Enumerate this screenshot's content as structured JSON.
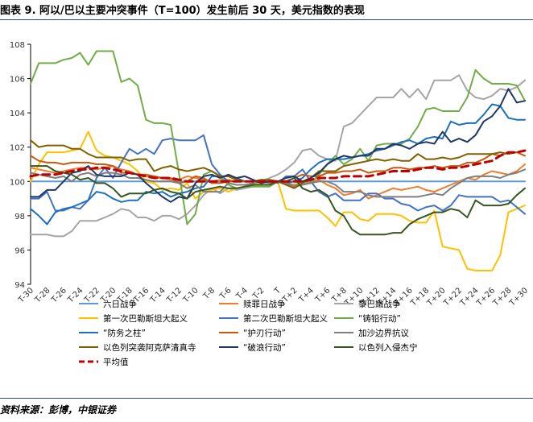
{
  "title": "图表 9. 阿以/巴以主要冲突事件（T=100）发生前后 30 天，美元指数的表现",
  "source": "资料来源：彭博，中银证券",
  "chart_data": {
    "type": "line",
    "x": [
      "T-30",
      "T-29",
      "T-28",
      "T-27",
      "T-26",
      "T-25",
      "T-24",
      "T-23",
      "T-22",
      "T-21",
      "T-20",
      "T-19",
      "T-18",
      "T-17",
      "T-16",
      "T-15",
      "T-14",
      "T-13",
      "T-12",
      "T-11",
      "T-10",
      "T-9",
      "T-8",
      "T-7",
      "T-6",
      "T-5",
      "T-4",
      "T-3",
      "T-2",
      "T-1",
      "T",
      "T+1",
      "T+2",
      "T+3",
      "T+4",
      "T+5",
      "T+6",
      "T+7",
      "T+8",
      "T+9",
      "T+10",
      "T+11",
      "T+12",
      "T+13",
      "T+14",
      "T+15",
      "T+16",
      "T+17",
      "T+18",
      "T+19",
      "T+20",
      "T+21",
      "T+22",
      "T+23",
      "T+24",
      "T+25",
      "T+26",
      "T+27",
      "T+28",
      "T+29",
      "T+30"
    ],
    "xticks": [
      "T-30",
      "T-28",
      "T-26",
      "T-24",
      "T-22",
      "T-20",
      "T-18",
      "T-16",
      "T-14",
      "T-12",
      "T-10",
      "T-8",
      "T-6",
      "T-4",
      "T-2",
      "T",
      "T+2",
      "T+4",
      "T+6",
      "T+8",
      "T+10",
      "T+12",
      "T+14",
      "T+16",
      "T+18",
      "T+20",
      "T+22",
      "T+24",
      "T+26",
      "T+28",
      "T+30"
    ],
    "ylim": [
      94,
      108
    ],
    "yticks": [
      94,
      96,
      98,
      100,
      102,
      104,
      106,
      108
    ],
    "grid": false,
    "legend_position": "bottom",
    "series": [
      {
        "name": "六日战争",
        "color": "#5b9bd5",
        "width": 2,
        "dashed": false,
        "values": [
          100,
          100,
          100,
          100,
          100,
          100,
          100,
          100,
          100,
          100,
          100,
          100,
          100,
          100,
          100,
          100,
          100,
          100,
          100,
          100,
          100,
          100,
          100,
          100,
          100,
          100,
          100,
          100,
          100,
          100,
          100,
          100,
          100,
          100,
          100,
          100,
          100,
          100,
          100,
          100,
          100,
          100,
          100,
          100,
          100,
          100,
          100,
          100,
          100,
          100,
          100,
          100,
          100,
          100,
          100,
          100,
          100,
          100,
          100,
          100,
          100
        ]
      },
      {
        "name": "赎罪日战争",
        "color": "#ed7d31",
        "width": 2,
        "dashed": false,
        "values": [
          100.8,
          100.7,
          100.6,
          100.5,
          100.6,
          100.7,
          100.8,
          100.8,
          100.7,
          100.8,
          100.9,
          100.7,
          100.6,
          100.4,
          100.3,
          100.2,
          100.2,
          100.1,
          100.1,
          100.3,
          100.2,
          100.1,
          100.0,
          100.1,
          100.1,
          100.0,
          100.0,
          100.0,
          100.1,
          100.0,
          100.0,
          99.9,
          99.8,
          99.9,
          100.0,
          100.1,
          99.8,
          99.6,
          99.2,
          99.3,
          99.5,
          99.0,
          99.2,
          99.4,
          99.6,
          99.5,
          99.6,
          99.7,
          99.5,
          99.4,
          99.6,
          99.8,
          100.0,
          100.2,
          100.1,
          100.4,
          100.6,
          100.5,
          100.4,
          100.6,
          101.0
        ]
      },
      {
        "name": "黎巴嫩战争",
        "color": "#a5a5a5",
        "width": 2,
        "dashed": false,
        "values": [
          96.9,
          96.9,
          96.9,
          96.8,
          96.8,
          97.1,
          97.7,
          97.7,
          97.7,
          97.9,
          98.1,
          98.4,
          98.3,
          97.9,
          97.9,
          97.7,
          98.0,
          98.0,
          97.8,
          98.1,
          98.6,
          99.2,
          99.6,
          99.3,
          99.6,
          99.5,
          99.6,
          99.7,
          100.0,
          100.2,
          100.4,
          100.7,
          101.1,
          101.8,
          101.9,
          101.5,
          101.3,
          101.2,
          103.2,
          103.4,
          103.9,
          104.4,
          104.9,
          104.9,
          104.9,
          105.4,
          104.9,
          105.4,
          104.8,
          105.9,
          105.9,
          105.9,
          106.2,
          105.3,
          104.9,
          104.8,
          105.0,
          105.4,
          105.3,
          105.5,
          105.9
        ]
      },
      {
        "name": "第一次巴勒斯坦大起义",
        "color": "#ffc000",
        "width": 2,
        "dashed": false,
        "values": [
          100.0,
          101.0,
          101.7,
          101.7,
          101.7,
          101.8,
          101.9,
          102.9,
          101.8,
          101.5,
          101.4,
          101.2,
          101.0,
          100.6,
          100.0,
          99.9,
          99.5,
          99.6,
          99.5,
          99.9,
          99.0,
          99.4,
          99.5,
          99.6,
          99.4,
          99.6,
          99.7,
          99.9,
          99.9,
          100.0,
          100.0,
          98.4,
          98.3,
          98.3,
          98.3,
          98.3,
          97.9,
          97.4,
          98.2,
          98.2,
          97.8,
          97.7,
          98.1,
          98.1,
          98.1,
          98.0,
          97.7,
          97.6,
          97.6,
          98.3,
          96.2,
          96.1,
          96.0,
          94.9,
          94.8,
          94.8,
          94.8,
          95.7,
          98.2,
          98.4,
          98.6
        ]
      },
      {
        "name": "第二次巴勒斯坦大起义",
        "color": "#4472c4",
        "width": 2,
        "dashed": false,
        "values": [
          99.0,
          99.0,
          99.4,
          98.3,
          98.3,
          98.5,
          98.4,
          98.9,
          100.2,
          100.8,
          100.2,
          101.1,
          101.9,
          101.6,
          101.9,
          101.6,
          102.4,
          102.5,
          102.4,
          102.4,
          102.4,
          102.7,
          101.0,
          100.4,
          100.0,
          100.0,
          100.0,
          100.0,
          100.0,
          100.0,
          99.9,
          100.3,
          100.3,
          100.7,
          100.0,
          99.4,
          99.1,
          99.3,
          98.9,
          98.9,
          98.9,
          99.3,
          99.3,
          99.0,
          99.0,
          98.7,
          98.6,
          98.3,
          98.5,
          98.6,
          98.3,
          98.6,
          99.2,
          99.1,
          99.1,
          99.1,
          99.1,
          98.8,
          98.9,
          98.5,
          98.1
        ]
      },
      {
        "name": "“铸铅行动”",
        "color": "#70ad47",
        "width": 2,
        "dashed": false,
        "values": [
          105.7,
          106.9,
          106.9,
          106.9,
          107.1,
          107.2,
          107.5,
          106.8,
          107.6,
          107.6,
          107.6,
          105.8,
          106.0,
          105.6,
          103.6,
          103.4,
          103.4,
          103.3,
          100.5,
          97.5,
          98.1,
          100.4,
          100.6,
          100.3,
          99.8,
          99.6,
          99.7,
          99.7,
          99.7,
          99.7,
          100.0,
          99.9,
          99.7,
          100.0,
          99.9,
          100.4,
          101.0,
          101.5,
          101.0,
          101.3,
          101.9,
          101.2,
          102.1,
          102.2,
          102.2,
          102.2,
          102.5,
          103.2,
          104.2,
          104.3,
          104.1,
          104.1,
          104.1,
          104.9,
          106.5,
          106.0,
          105.7,
          105.7,
          105.7,
          105.6,
          104.7
        ]
      },
      {
        "name": "“防务之柱”",
        "color": "#1f6fbf",
        "width": 2,
        "dashed": false,
        "values": [
          98.4,
          98.0,
          97.5,
          98.2,
          98.4,
          98.5,
          98.7,
          98.9,
          99.4,
          99.3,
          99.0,
          98.8,
          98.9,
          98.9,
          99.4,
          99.3,
          99.4,
          99.1,
          99.3,
          99.4,
          99.6,
          99.7,
          100.3,
          100.3,
          100.3,
          100.2,
          100.0,
          100.0,
          100.0,
          100.1,
          100.0,
          99.9,
          100.0,
          100.2,
          100.7,
          101.1,
          101.3,
          101.3,
          101.3,
          101.4,
          101.5,
          101.6,
          101.8,
          101.9,
          102.1,
          102.3,
          102.4,
          102.2,
          102.5,
          102.6,
          102.5,
          103.5,
          103.3,
          103.4,
          103.4,
          103.9,
          104.5,
          104.4,
          103.7,
          103.6,
          103.6
        ]
      },
      {
        "name": "“护刃行动”",
        "color": "#c55a11",
        "width": 2,
        "dashed": false,
        "values": [
          101.5,
          101.2,
          101.1,
          101.1,
          101.0,
          101.1,
          101.1,
          101.1,
          101.0,
          101.0,
          100.9,
          100.5,
          100.5,
          100.4,
          100.4,
          100.3,
          100.2,
          100.2,
          99.9,
          100.0,
          100.3,
          100.2,
          99.9,
          99.9,
          100.0,
          100.0,
          100.0,
          100.0,
          100.0,
          100.0,
          100.0,
          100.0,
          100.2,
          100.4,
          100.3,
          100.3,
          100.5,
          100.5,
          100.6,
          100.6,
          100.7,
          100.5,
          100.6,
          100.6,
          100.8,
          100.8,
          100.7,
          100.8,
          100.8,
          100.9,
          100.8,
          100.9,
          100.9,
          101.1,
          101.1,
          101.3,
          101.6,
          101.5,
          101.7,
          101.7,
          101.5
        ]
      },
      {
        "name": "加沙边界抗议",
        "color": "#7f7f7f",
        "width": 2,
        "dashed": false,
        "values": [
          100.5,
          100.4,
          100.3,
          100.2,
          100.3,
          100.0,
          100.4,
          100.5,
          100.3,
          100.5,
          100.5,
          100.4,
          100.2,
          100.2,
          100.1,
          100.0,
          100.0,
          100.0,
          99.9,
          99.6,
          99.8,
          99.4,
          99.4,
          99.4,
          99.9,
          99.8,
          99.8,
          99.9,
          100.0,
          99.9,
          100.0,
          99.9,
          99.7,
          99.8,
          99.9,
          100.0,
          100.0,
          99.8,
          99.4,
          99.4,
          99.4,
          99.2,
          99.1,
          99.1,
          99.1,
          99.1,
          99.1,
          99.1,
          99.2,
          99.3,
          99.2,
          99.6,
          99.9,
          100.2,
          100.3,
          100.3,
          100.3,
          100.2,
          100.4,
          100.5,
          100.7
        ]
      },
      {
        "name": "以色列突袭阿克萨清真寺",
        "color": "#806000",
        "width": 2,
        "dashed": false,
        "values": [
          102.4,
          102.0,
          102.1,
          102.1,
          102.1,
          101.9,
          101.9,
          101.6,
          101.4,
          101.4,
          101.4,
          101.4,
          101.2,
          101.3,
          101.3,
          100.6,
          100.8,
          100.9,
          100.7,
          100.6,
          100.7,
          100.8,
          100.6,
          100.3,
          100.3,
          100.1,
          100.0,
          100.0,
          100.1,
          100.1,
          100.0,
          99.8,
          99.6,
          99.9,
          100.2,
          100.6,
          100.6,
          100.6,
          100.9,
          101.0,
          101.1,
          101.2,
          101.3,
          101.2,
          101.3,
          101.2,
          101.2,
          101.6,
          101.3,
          101.3,
          101.4,
          101.3,
          101.4,
          101.6,
          101.6,
          101.6,
          101.6,
          101.7,
          101.6,
          101.7,
          101.8
        ]
      },
      {
        "name": "“破浪行动”",
        "color": "#203864",
        "width": 2,
        "dashed": false,
        "values": [
          99.1,
          99.1,
          99.5,
          99.5,
          100.0,
          100.5,
          100.6,
          100.9,
          100.4,
          100.3,
          100.3,
          100.3,
          100.5,
          100.4,
          99.9,
          99.5,
          99.1,
          98.8,
          99.1,
          99.0,
          99.9,
          100.3,
          100.4,
          100.2,
          100.4,
          100.2,
          100.3,
          100.1,
          99.9,
          100.0,
          100.0,
          100.2,
          100.3,
          100.0,
          100.2,
          100.5,
          101.0,
          101.3,
          101.5,
          101.4,
          101.5,
          101.5,
          101.9,
          101.9,
          102.2,
          102.1,
          101.9,
          102.2,
          102.3,
          102.2,
          102.9,
          102.3,
          102.5,
          102.3,
          102.7,
          103.5,
          103.8,
          104.4,
          105.4,
          104.6,
          104.7
        ]
      },
      {
        "name": "以色列入侵杰宁",
        "color": "#375623",
        "width": 2,
        "dashed": false,
        "values": [
          100.9,
          100.9,
          100.9,
          100.6,
          100.5,
          100.4,
          100.1,
          100.2,
          99.9,
          99.9,
          99.6,
          99.1,
          99.3,
          99.3,
          99.3,
          99.5,
          99.6,
          99.4,
          99.3,
          99.0,
          99.4,
          99.5,
          99.6,
          99.7,
          99.6,
          99.6,
          99.7,
          99.8,
          99.8,
          99.8,
          100.0,
          100.0,
          100.2,
          99.6,
          99.4,
          99.5,
          99.2,
          98.3,
          98.0,
          97.2,
          96.9,
          96.9,
          96.9,
          96.9,
          97.0,
          97.0,
          97.5,
          97.8,
          98.0,
          98.2,
          98.2,
          98.4,
          98.3,
          97.9,
          98.9,
          98.6,
          98.6,
          98.6,
          98.7,
          99.2,
          99.6
        ]
      },
      {
        "name": "平均值",
        "color": "#c00000",
        "width": 3,
        "dashed": true,
        "values": [
          100.3,
          100.4,
          100.4,
          100.4,
          100.5,
          100.6,
          100.7,
          100.7,
          100.8,
          100.8,
          100.7,
          100.6,
          100.5,
          100.4,
          100.3,
          100.2,
          100.2,
          100.2,
          100.1,
          100.0,
          100.0,
          100.0,
          100.0,
          100.0,
          100.0,
          100.0,
          100.0,
          100.0,
          100.0,
          100.0,
          100.0,
          100.0,
          100.0,
          100.0,
          100.1,
          100.2,
          100.2,
          100.2,
          100.3,
          100.3,
          100.3,
          100.3,
          100.4,
          100.5,
          100.6,
          100.6,
          100.6,
          100.7,
          100.8,
          100.8,
          100.7,
          100.8,
          100.8,
          100.9,
          101.0,
          101.1,
          101.2,
          101.5,
          101.7,
          101.7,
          101.8
        ]
      }
    ]
  }
}
